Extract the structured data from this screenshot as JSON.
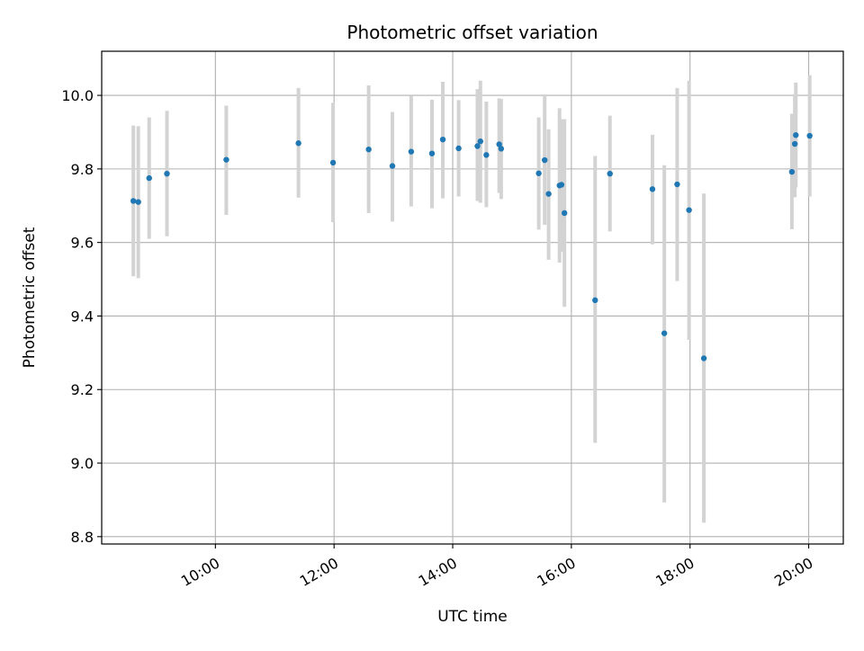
{
  "chart_data": {
    "type": "scatter",
    "title": "Photometric offset variation",
    "xlabel": "UTC time",
    "ylabel": "Photometric offset",
    "x_axis": "time",
    "xlim": [
      "08:05",
      "20:35"
    ],
    "ylim": [
      8.78,
      10.12
    ],
    "x_ticks": [
      "10:00",
      "12:00",
      "14:00",
      "16:00",
      "18:00",
      "20:00"
    ],
    "y_ticks": [
      8.8,
      9.0,
      9.2,
      9.4,
      9.6,
      9.8,
      10.0
    ],
    "y_tick_labels": [
      "8.8",
      "9.0",
      "9.2",
      "9.4",
      "9.6",
      "9.8",
      "10.0"
    ],
    "grid": true,
    "colors": {
      "points": "#1f77b4",
      "errorbars": "#d3d3d3",
      "grid": "#b0b0b0"
    },
    "points": [
      {
        "x": "08:37",
        "y": 9.713,
        "err_low": 9.508,
        "err_high": 9.918
      },
      {
        "x": "08:42",
        "y": 9.71,
        "err_low": 9.503,
        "err_high": 9.916
      },
      {
        "x": "08:53",
        "y": 9.775,
        "err_low": 9.61,
        "err_high": 9.94
      },
      {
        "x": "09:11",
        "y": 9.787,
        "err_low": 9.617,
        "err_high": 9.958
      },
      {
        "x": "10:11",
        "y": 9.825,
        "err_low": 9.675,
        "err_high": 9.972
      },
      {
        "x": "11:24",
        "y": 9.87,
        "err_low": 9.722,
        "err_high": 10.02
      },
      {
        "x": "11:59",
        "y": 9.817,
        "err_low": 9.655,
        "err_high": 9.98
      },
      {
        "x": "12:35",
        "y": 9.853,
        "err_low": 9.68,
        "err_high": 10.027
      },
      {
        "x": "12:59",
        "y": 9.808,
        "err_low": 9.657,
        "err_high": 9.955
      },
      {
        "x": "13:18",
        "y": 9.847,
        "err_low": 9.698,
        "err_high": 9.998
      },
      {
        "x": "13:39",
        "y": 9.842,
        "err_low": 9.693,
        "err_high": 9.988
      },
      {
        "x": "13:50",
        "y": 9.88,
        "err_low": 9.72,
        "err_high": 10.037
      },
      {
        "x": "14:06",
        "y": 9.856,
        "err_low": 9.725,
        "err_high": 9.987
      },
      {
        "x": "14:25",
        "y": 9.862,
        "err_low": 9.713,
        "err_high": 10.017
      },
      {
        "x": "14:28",
        "y": 9.875,
        "err_low": 9.708,
        "err_high": 10.04
      },
      {
        "x": "14:34",
        "y": 9.838,
        "err_low": 9.696,
        "err_high": 9.983
      },
      {
        "x": "14:47",
        "y": 9.867,
        "err_low": 9.735,
        "err_high": 9.992
      },
      {
        "x": "14:49",
        "y": 9.855,
        "err_low": 9.718,
        "err_high": 9.99
      },
      {
        "x": "15:27",
        "y": 9.788,
        "err_low": 9.635,
        "err_high": 9.94
      },
      {
        "x": "15:33",
        "y": 9.824,
        "err_low": 9.648,
        "err_high": 10.003
      },
      {
        "x": "15:37",
        "y": 9.732,
        "err_low": 9.553,
        "err_high": 9.908
      },
      {
        "x": "15:48",
        "y": 9.755,
        "err_low": 9.545,
        "err_high": 9.965
      },
      {
        "x": "15:50",
        "y": 9.757,
        "err_low": 9.575,
        "err_high": 9.935
      },
      {
        "x": "15:53",
        "y": 9.68,
        "err_low": 9.425,
        "err_high": 9.935
      },
      {
        "x": "16:24",
        "y": 9.443,
        "err_low": 9.055,
        "err_high": 9.835
      },
      {
        "x": "16:39",
        "y": 9.787,
        "err_low": 9.63,
        "err_high": 9.945
      },
      {
        "x": "17:22",
        "y": 9.745,
        "err_low": 9.595,
        "err_high": 9.893
      },
      {
        "x": "17:34",
        "y": 9.353,
        "err_low": 8.893,
        "err_high": 9.81
      },
      {
        "x": "17:47",
        "y": 9.758,
        "err_low": 9.495,
        "err_high": 10.02
      },
      {
        "x": "17:59",
        "y": 9.688,
        "err_low": 9.335,
        "err_high": 10.04
      },
      {
        "x": "18:14",
        "y": 9.285,
        "err_low": 8.838,
        "err_high": 9.733
      },
      {
        "x": "19:43",
        "y": 9.792,
        "err_low": 9.636,
        "err_high": 9.95
      },
      {
        "x": "19:46",
        "y": 9.868,
        "err_low": 9.723,
        "err_high": 10.003
      },
      {
        "x": "19:47",
        "y": 9.892,
        "err_low": 9.75,
        "err_high": 10.035
      },
      {
        "x": "20:01",
        "y": 9.89,
        "err_low": 9.725,
        "err_high": 10.055
      }
    ]
  }
}
